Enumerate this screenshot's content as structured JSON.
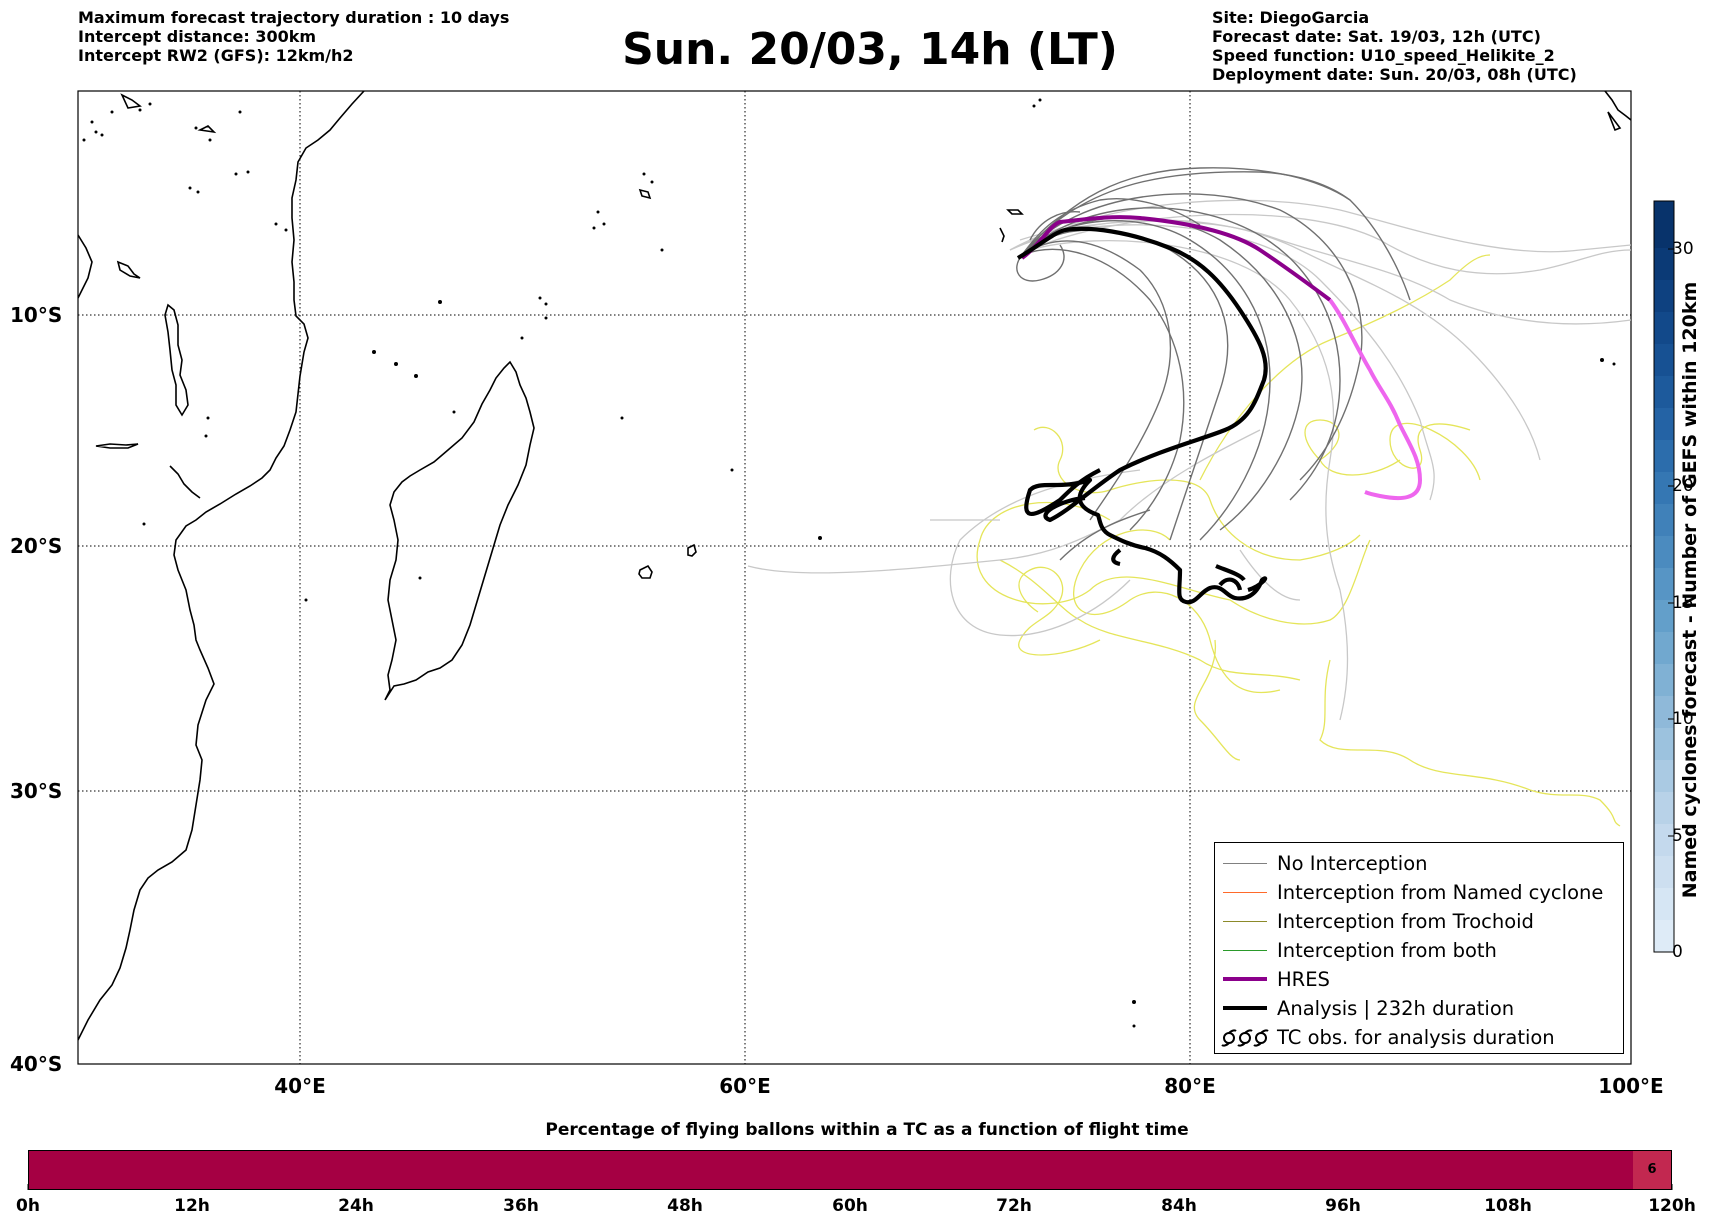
{
  "header_left": {
    "line1": "Maximum forecast trajectory duration : 10 days",
    "line2": "Intercept distance: 300km",
    "line3": "Intercept RW2 (GFS):  12km/h2"
  },
  "title": "Sun. 20/03, 14h (LT)",
  "header_right": {
    "line1": "Site: DiegoGarcia",
    "line2": "Forecast date: Sat. 19/03, 12h (UTC)",
    "line3": "Speed function: U10_speed_Helikite_2",
    "line4": "Deployment date: Sun. 20/03, 08h (UTC)"
  },
  "map": {
    "lon_labels": [
      "40°E",
      "60°E",
      "80°E",
      "100°E"
    ],
    "lat_labels": [
      "10°S",
      "20°S",
      "30°S",
      "40°S"
    ],
    "lon_range": [
      30,
      100
    ],
    "lat_range": [
      -40,
      -0.5
    ]
  },
  "legend": {
    "no_interception": "No Interception",
    "named_cyclone": "Interception from Named cyclone",
    "trochoid": "Interception from Trochoid",
    "both": "Interception from both",
    "hres": "HRES",
    "analysis": "Analysis | 232h duration",
    "tc_obs": "TC obs. for analysis duration",
    "colors": {
      "no_interception": "#808080",
      "named_cyclone": "#ff6a2a",
      "trochoid": "#8c8a2a",
      "both": "#2a9a2a",
      "hres": "#8b008b",
      "analysis": "#000000"
    }
  },
  "colorbar": {
    "title": "Named cyclones forecast - Number of GEFS within 120km",
    "ticks": [
      "0",
      "5",
      "10",
      "15",
      "20",
      "30"
    ],
    "tick_values": [
      0,
      5,
      10,
      15,
      20,
      30
    ],
    "range": [
      0,
      31
    ]
  },
  "bottom_bar": {
    "title": "Percentage of flying ballons within a TC as a function of flight time",
    "ticks": [
      "0h",
      "12h",
      "24h",
      "36h",
      "48h",
      "60h",
      "72h",
      "84h",
      "96h",
      "108h",
      "120h"
    ],
    "last_cell_value": "6"
  }
}
